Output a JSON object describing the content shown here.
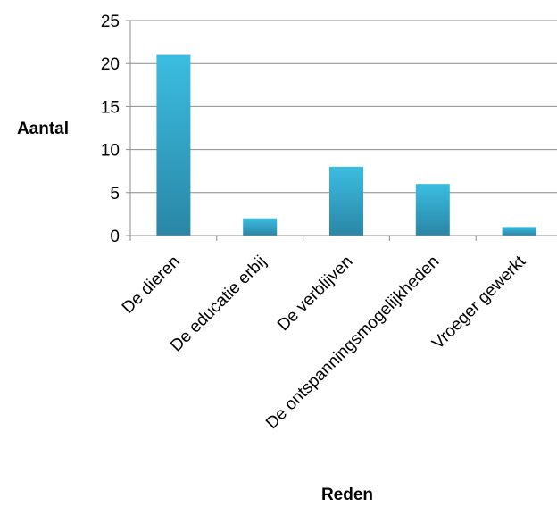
{
  "chart_data": {
    "type": "bar",
    "title": "",
    "xlabel": "Reden",
    "ylabel": "Aantal",
    "categories": [
      "De dieren",
      "De educatie erbij",
      "De verblijven",
      "De ontspanningsmogelijkheden",
      "Vroeger gewerkt"
    ],
    "values": [
      21,
      2,
      8,
      6,
      1
    ],
    "ylim": [
      0,
      25
    ],
    "yticks": [
      0,
      5,
      10,
      15,
      20,
      25
    ],
    "grid": "horizontal",
    "legend": "none",
    "bar_color_top": "#3bbde0",
    "bar_color_bottom": "#2a86a6",
    "grid_color": "#8c8c8c"
  }
}
